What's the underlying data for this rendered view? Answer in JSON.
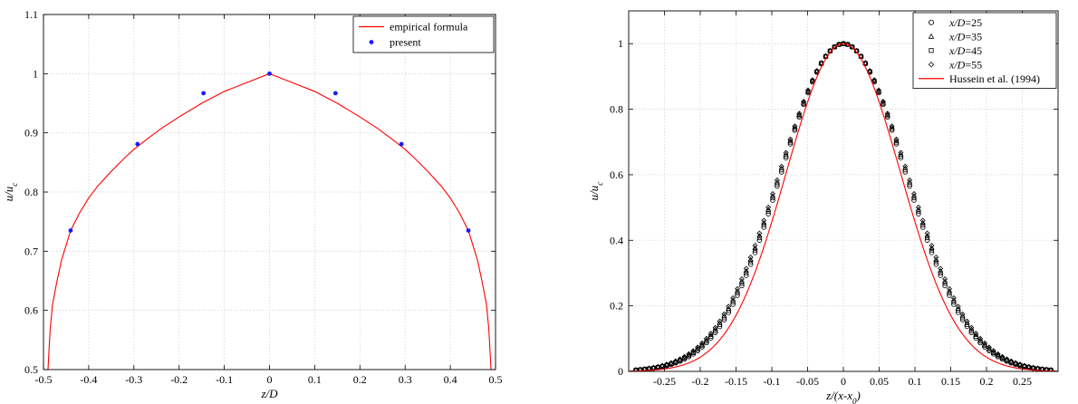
{
  "chart_data": [
    {
      "type": "scatter",
      "xlabel": "z/D",
      "ylabel": "u/u",
      "ylabel_sub": "c",
      "xlim": [
        -0.5,
        0.5
      ],
      "ylim": [
        0.5,
        1.1
      ],
      "xticks": [
        -0.5,
        -0.4,
        -0.3,
        -0.2,
        -0.1,
        0,
        0.1,
        0.2,
        0.3,
        0.4,
        0.5
      ],
      "xtick_labels": [
        "-0.5",
        "-0.4",
        "-0.3",
        "-0.2",
        "-0.1",
        "0",
        "0.1",
        "0.2",
        "0.3",
        "0.4",
        "0.5"
      ],
      "yticks": [
        0.5,
        0.6,
        0.7,
        0.8,
        0.9,
        1,
        1.1
      ],
      "ytick_labels": [
        "0.5",
        "0.6",
        "0.7",
        "0.8",
        "0.9",
        "1",
        "1.1"
      ],
      "grid": true,
      "legend_position": "top-right",
      "series": [
        {
          "name": "empirical formula",
          "kind": "line",
          "color": "#ff0000",
          "x": [
            -0.49,
            -0.488,
            -0.485,
            -0.48,
            -0.47,
            -0.46,
            -0.45,
            -0.44,
            -0.42,
            -0.4,
            -0.38,
            -0.35,
            -0.32,
            -0.3,
            -0.27,
            -0.24,
            -0.2,
            -0.15,
            -0.1,
            -0.05,
            0,
            0.05,
            0.1,
            0.15,
            0.2,
            0.24,
            0.27,
            0.3,
            0.32,
            0.35,
            0.38,
            0.4,
            0.42,
            0.44,
            0.45,
            0.46,
            0.47,
            0.48,
            0.485,
            0.488,
            0.49
          ],
          "y": [
            0.5,
            0.53,
            0.57,
            0.61,
            0.65,
            0.685,
            0.71,
            0.735,
            0.765,
            0.79,
            0.81,
            0.835,
            0.858,
            0.872,
            0.89,
            0.907,
            0.927,
            0.95,
            0.97,
            0.985,
            1.0,
            0.985,
            0.97,
            0.95,
            0.927,
            0.907,
            0.89,
            0.872,
            0.858,
            0.835,
            0.81,
            0.79,
            0.765,
            0.735,
            0.71,
            0.685,
            0.65,
            0.61,
            0.57,
            0.53,
            0.5
          ]
        },
        {
          "name": "present",
          "kind": "points",
          "color": "#1a1aff",
          "x": [
            -0.44,
            -0.292,
            -0.146,
            0,
            0.146,
            0.292,
            0.44
          ],
          "y": [
            0.735,
            0.881,
            0.967,
            1.0,
            0.967,
            0.881,
            0.735
          ]
        }
      ]
    },
    {
      "type": "scatter",
      "xlabel": "z/(x-x",
      "xlabel_sub": "0",
      "xlabel_end": ")",
      "ylabel": "u/u",
      "ylabel_sub": "c",
      "xlim": [
        -0.3,
        0.3
      ],
      "ylim": [
        0,
        1.1
      ],
      "xticks": [
        -0.25,
        -0.2,
        -0.15,
        -0.1,
        -0.05,
        0,
        0.05,
        0.1,
        0.15,
        0.2,
        0.25
      ],
      "xtick_labels": [
        "-0.25",
        "-0.2",
        "-0.15",
        "-0.1",
        "-0.05",
        "0",
        "0.05",
        "0.1",
        "0.15",
        "0.2",
        "0.25"
      ],
      "yticks": [
        0,
        0.2,
        0.4,
        0.6,
        0.8,
        1
      ],
      "ytick_labels": [
        "0",
        "0.2",
        "0.4",
        "0.6",
        "0.8",
        "1"
      ],
      "grid": true,
      "legend_position": "top-right",
      "profile": "gaussian",
      "series": [
        {
          "name": "x/D=25",
          "kind": "points",
          "marker": "circle",
          "color": "#000000",
          "width": 0.102,
          "x_range": [
            -0.29,
            0.29
          ],
          "n": 95
        },
        {
          "name": "x/D=35",
          "kind": "points",
          "marker": "triangle",
          "color": "#000000",
          "width": 0.104,
          "x_range": [
            -0.29,
            0.29
          ],
          "n": 95
        },
        {
          "name": "x/D=45",
          "kind": "points",
          "marker": "square",
          "color": "#000000",
          "width": 0.103,
          "x_range": [
            -0.29,
            0.29
          ],
          "n": 95
        },
        {
          "name": "x/D=55",
          "kind": "points",
          "marker": "diamond",
          "color": "#000000",
          "width": 0.105,
          "x_range": [
            -0.29,
            0.29
          ],
          "n": 95
        },
        {
          "name": "Hussein et al. (1994)",
          "kind": "line",
          "color": "#ff0000",
          "width": 0.094,
          "x_range": [
            -0.3,
            0.3
          ],
          "n": 241
        }
      ]
    }
  ]
}
